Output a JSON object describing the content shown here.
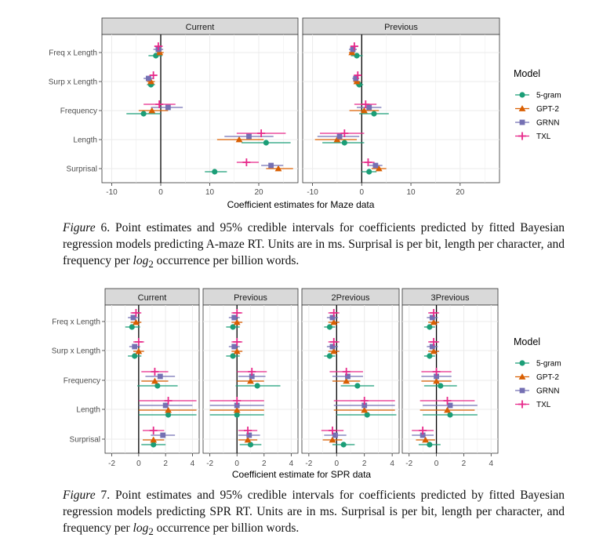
{
  "legend": {
    "title": "Model",
    "entries": [
      {
        "name": "5-gram",
        "color": "#1b9e77",
        "shape": "circle"
      },
      {
        "name": "GPT-2",
        "color": "#d95f02",
        "shape": "triangle"
      },
      {
        "name": "GRNN",
        "color": "#7570b3",
        "shape": "square"
      },
      {
        "name": "TXL",
        "color": "#e7298a",
        "shape": "plus"
      }
    ]
  },
  "captions": {
    "fig6": {
      "label": "Figure",
      "number": "6",
      "text_before_math": ". Point estimates and 95% credible intervals for coefficients predicted by fitted Bayesian regression models predicting A-maze RT. Units are in ms. Surprisal is per bit, length per character, and frequency per ",
      "math": "log",
      "math_sub": "2",
      "text_after_math": " occurrence per billion words."
    },
    "fig7": {
      "label": "Figure",
      "number": "7",
      "text_before_math": ". Point estimates and 95% credible intervals for coefficients predicted by fitted Bayesian regression models predicting SPR RT. Units are in ms. Surprisal is per bit, length per character, and frequency per ",
      "math": "log",
      "math_sub": "2",
      "text_after_math": " occurrence per billion words."
    }
  },
  "chart_data": [
    {
      "type": "point-range",
      "figure": "Figure 6",
      "xlabel": "Coefficient estimates for Maze data",
      "ylabel": "",
      "xlim": [
        -12,
        28
      ],
      "xticks": [
        -10,
        0,
        10,
        20
      ],
      "categories": [
        "Freq x Length",
        "Surp x Length",
        "Frequency",
        "Length",
        "Surprisal"
      ],
      "panels": [
        {
          "name": "Current",
          "series": [
            {
              "name": "5-gram",
              "estimates": [
                -1,
                -2,
                -3.5,
                21.5,
                11
              ],
              "lower": [
                -2.5,
                -2.8,
                -7,
                16.5,
                9
              ],
              "upper": [
                0.3,
                -1.2,
                0,
                26.5,
                13.5
              ]
            },
            {
              "name": "GPT-2",
              "estimates": [
                -0.2,
                -2,
                -1.8,
                16,
                24
              ],
              "lower": [
                -0.8,
                -2.8,
                -4.5,
                11.5,
                21.5
              ],
              "upper": [
                0.6,
                -1.2,
                1.5,
                21,
                27
              ]
            },
            {
              "name": "GRNN",
              "estimates": [
                -0.5,
                -2.5,
                1.5,
                18,
                22.5
              ],
              "lower": [
                -1.5,
                -3.5,
                -2,
                13,
                20.5
              ],
              "upper": [
                0.5,
                -1.5,
                4.5,
                23,
                25
              ]
            },
            {
              "name": "TXL",
              "estimates": [
                -0.5,
                -1.5,
                -0.3,
                20.5,
                17.5
              ],
              "lower": [
                -1.3,
                -2.3,
                -3.5,
                15.5,
                15.5
              ],
              "upper": [
                0.4,
                -0.7,
                3,
                25.5,
                20
              ]
            }
          ]
        },
        {
          "name": "Previous",
          "series": [
            {
              "name": "5-gram",
              "estimates": [
                -1,
                -0.5,
                2.5,
                -3.5,
                1.5
              ],
              "lower": [
                -2.2,
                -1.2,
                -0.5,
                -8,
                0
              ],
              "upper": [
                0.2,
                0.3,
                5.5,
                0.5,
                3
              ]
            },
            {
              "name": "GPT-2",
              "estimates": [
                -2,
                -1,
                0.5,
                -5,
                3.5
              ],
              "lower": [
                -2.6,
                -1.7,
                -2.5,
                -9.5,
                2
              ],
              "upper": [
                -1.4,
                -0.3,
                3.5,
                -1,
                5
              ]
            },
            {
              "name": "GRNN",
              "estimates": [
                -1.8,
                -1.2,
                1.5,
                -4.5,
                2.8
              ],
              "lower": [
                -2.6,
                -1.9,
                -1,
                -9,
                1.5
              ],
              "upper": [
                -1,
                -0.5,
                4,
                -0.5,
                4.2
              ]
            },
            {
              "name": "TXL",
              "estimates": [
                -1.5,
                -0.8,
                0.8,
                -3.5,
                1.3
              ],
              "lower": [
                -2.3,
                -1.5,
                -1.5,
                -8.5,
                0
              ],
              "upper": [
                -0.7,
                -0.1,
                3,
                0.5,
                2.6
              ]
            }
          ]
        }
      ]
    },
    {
      "type": "point-range",
      "figure": "Figure 7",
      "xlabel": "Coefficient estimate for SPR data",
      "ylabel": "",
      "xlim": [
        -2.5,
        4.5
      ],
      "xticks": [
        -2,
        0,
        2,
        4
      ],
      "categories": [
        "Freq x Length",
        "Surp x Length",
        "Frequency",
        "Length",
        "Surprisal"
      ],
      "panels": [
        {
          "name": "Current",
          "series": [
            {
              "name": "5-gram",
              "estimates": [
                -0.5,
                -0.3,
                1.4,
                2.2,
                1.1
              ],
              "lower": [
                -1,
                -0.8,
                -0.1,
                0,
                0.2
              ],
              "upper": [
                0.1,
                0.2,
                2.9,
                4.3,
                2
              ]
            },
            {
              "name": "GPT-2",
              "estimates": [
                -0.2,
                0,
                1.2,
                2.2,
                1.1
              ],
              "lower": [
                -0.6,
                -0.4,
                0.2,
                0,
                0.3
              ],
              "upper": [
                0.2,
                0.4,
                2.2,
                4.3,
                1.9
              ]
            },
            {
              "name": "GRNN",
              "estimates": [
                -0.4,
                -0.3,
                1.6,
                2,
                1.8
              ],
              "lower": [
                -0.8,
                -0.7,
                0.5,
                0,
                0.9
              ],
              "upper": [
                0,
                0.1,
                2.7,
                4,
                2.7
              ]
            },
            {
              "name": "TXL",
              "estimates": [
                -0.2,
                0,
                1.2,
                2.2,
                1.1
              ],
              "lower": [
                -0.6,
                -0.4,
                0.2,
                0,
                0.3
              ],
              "upper": [
                0.2,
                0.4,
                2.2,
                4.3,
                1.9
              ]
            }
          ]
        },
        {
          "name": "Previous",
          "series": [
            {
              "name": "5-gram",
              "estimates": [
                -0.3,
                -0.3,
                1.5,
                0,
                1
              ],
              "lower": [
                -0.8,
                -0.8,
                -0.1,
                -2,
                0.2
              ],
              "upper": [
                0.2,
                0.2,
                3.2,
                2,
                1.8
              ]
            },
            {
              "name": "GPT-2",
              "estimates": [
                0,
                0,
                1,
                0,
                0.8
              ],
              "lower": [
                -0.4,
                -0.4,
                0,
                -2,
                0.1
              ],
              "upper": [
                0.4,
                0.4,
                2,
                2,
                1.5
              ]
            },
            {
              "name": "GRNN",
              "estimates": [
                -0.2,
                -0.2,
                1.1,
                0,
                0.9
              ],
              "lower": [
                -0.6,
                -0.6,
                0.1,
                -2,
                0.1
              ],
              "upper": [
                0.2,
                0.2,
                2.1,
                2,
                1.7
              ]
            },
            {
              "name": "TXL",
              "estimates": [
                0,
                0,
                1.1,
                0,
                0.8
              ],
              "lower": [
                -0.4,
                -0.4,
                0,
                -2,
                0.1
              ],
              "upper": [
                0.4,
                0.4,
                2.2,
                2,
                1.5
              ]
            }
          ]
        },
        {
          "name": "2Previous",
          "series": [
            {
              "name": "5-gram",
              "estimates": [
                -0.5,
                -0.5,
                1.5,
                2.2,
                0.5
              ],
              "lower": [
                -0.9,
                -0.9,
                0.3,
                0,
                -0.3
              ],
              "upper": [
                -0.1,
                -0.1,
                2.7,
                4.3,
                1.3
              ]
            },
            {
              "name": "GPT-2",
              "estimates": [
                -0.2,
                -0.2,
                0.7,
                2,
                -0.3
              ],
              "lower": [
                -0.6,
                -0.6,
                -0.3,
                -0.2,
                -1
              ],
              "upper": [
                0.2,
                0.2,
                1.7,
                4.2,
                0.4
              ]
            },
            {
              "name": "GRNN",
              "estimates": [
                -0.3,
                -0.3,
                0.8,
                2,
                -0.1
              ],
              "lower": [
                -0.7,
                -0.7,
                -0.3,
                -0.2,
                -0.9
              ],
              "upper": [
                0.1,
                0.1,
                1.9,
                4.2,
                0.7
              ]
            },
            {
              "name": "TXL",
              "estimates": [
                -0.2,
                -0.2,
                0.7,
                2,
                -0.3
              ],
              "lower": [
                -0.6,
                -0.6,
                -0.5,
                -0.2,
                -1.1
              ],
              "upper": [
                0.2,
                0.2,
                1.9,
                4.2,
                0.5
              ]
            }
          ]
        },
        {
          "name": "3Previous",
          "series": [
            {
              "name": "5-gram",
              "estimates": [
                -0.5,
                -0.5,
                0.3,
                1,
                -0.5
              ],
              "lower": [
                -0.9,
                -0.9,
                -0.9,
                -1,
                -1.3
              ],
              "upper": [
                -0.1,
                -0.1,
                1.5,
                3,
                0.3
              ]
            },
            {
              "name": "GPT-2",
              "estimates": [
                -0.2,
                -0.2,
                0,
                0.8,
                -0.8
              ],
              "lower": [
                -0.6,
                -0.6,
                -1.1,
                -1.2,
                -1.5
              ],
              "upper": [
                0.2,
                0.2,
                1.1,
                2.8,
                -0.1
              ]
            },
            {
              "name": "GRNN",
              "estimates": [
                -0.3,
                -0.3,
                0,
                1,
                -1
              ],
              "lower": [
                -0.7,
                -0.7,
                -1.1,
                -1,
                -1.8
              ],
              "upper": [
                0.1,
                0.1,
                1.1,
                3,
                -0.2
              ]
            },
            {
              "name": "TXL",
              "estimates": [
                -0.2,
                -0.2,
                0,
                0.8,
                -1
              ],
              "lower": [
                -0.6,
                -0.6,
                -1.1,
                -1.2,
                -1.8
              ],
              "upper": [
                0.2,
                0.2,
                1.1,
                2.8,
                -0.2
              ]
            }
          ]
        }
      ]
    }
  ]
}
